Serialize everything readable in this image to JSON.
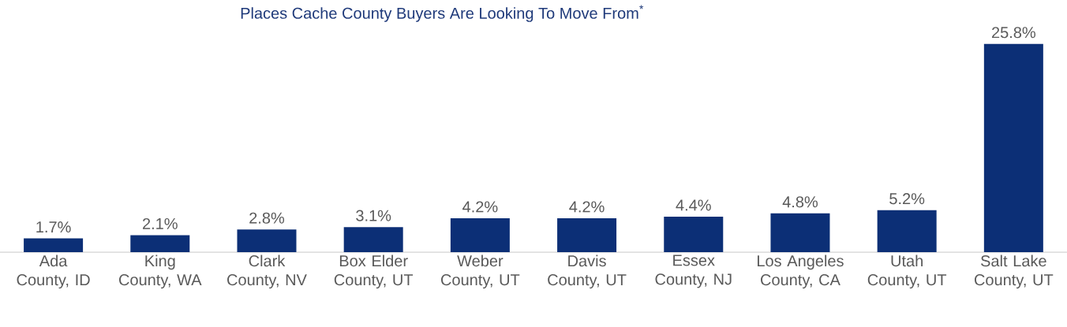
{
  "chart_data": {
    "type": "bar",
    "title": "Places Cache County Buyers Are Looking To Move From$^{*}$",
    "categories": [
      "Ada County, ID",
      "King County, WA",
      "Clark County, NV",
      "Box Elder County, UT",
      "Weber County, UT",
      "Davis County, UT",
      "Essex County, NJ",
      "Los Angeles County, CA",
      "Utah County, UT",
      "Salt Lake County, UT"
    ],
    "values": [
      1.7,
      2.1,
      2.8,
      3.1,
      4.2,
      4.2,
      4.4,
      4.8,
      5.2,
      25.8
    ],
    "value_labels": [
      "1.7%",
      "2.1%",
      "2.8%",
      "3.1%",
      "4.2%",
      "4.2%",
      "4.4%",
      "4.8%",
      "5.2%",
      "25.8%"
    ],
    "color": "#0c2f76"
  }
}
